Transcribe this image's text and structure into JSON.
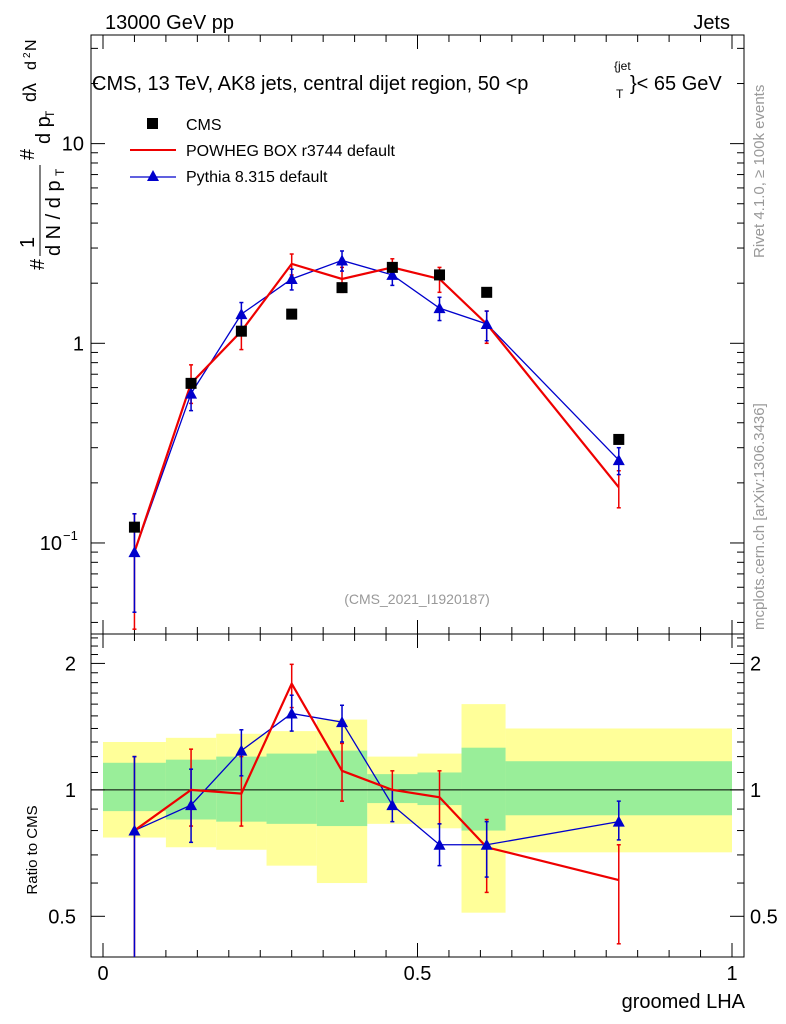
{
  "header": {
    "left": "13000 GeV pp",
    "right": "Jets"
  },
  "side_labels": {
    "rivet": "Rivet 4.1.0, ≥ 100k events",
    "mcplots": "mcplots.cern.ch [arXiv:1306.3436]"
  },
  "colors": {
    "cms": "#000000",
    "powheg": "#ee0000",
    "pythia": "#0000cc",
    "band_yellow": "#ffff99",
    "band_green": "#99ee99"
  },
  "chart_data": [
    {
      "type": "line",
      "title": "CMS, 13 TeV, AK8 jets, central dijet region, 50 <p_T^{jet}< 65 GeV",
      "title_parts": {
        "main": "CMS, 13 TeV, AK8 jets, central dijet region, 50 <p",
        "sub": "T",
        "sup": "{jet",
        "tail": "}< 65 GeV"
      },
      "ylabel_parts": [
        "#",
        "1",
        "d N / d p",
        "T",
        "#",
        "d p",
        "T",
        "dλ",
        "d",
        "2",
        "N"
      ],
      "yscale": "log",
      "xlim": [
        0,
        1
      ],
      "ylim": [
        0.035,
        35
      ],
      "major_ticks": [
        {
          "value": 0.1,
          "base": "10",
          "exp": "−1"
        },
        {
          "value": 1,
          "base": "1",
          "exp": ""
        },
        {
          "value": 10,
          "base": "10",
          "exp": ""
        }
      ],
      "watermark": "(CMS_2021_I1920187)",
      "legend": [
        "CMS",
        "POWHEG BOX r3744 default",
        "Pythia 8.315 default"
      ],
      "x": [
        0.05,
        0.14,
        0.22,
        0.3,
        0.38,
        0.46,
        0.535,
        0.61,
        0.82
      ],
      "series": [
        {
          "name": "CMS",
          "style": "marker",
          "values": [
            0.12,
            0.63,
            1.15,
            1.4,
            1.9,
            2.4,
            2.2,
            1.8,
            0.33
          ]
        },
        {
          "name": "POWHEG BOX r3744 default",
          "style": "line",
          "values": [
            0.09,
            0.63,
            1.15,
            2.5,
            2.1,
            2.4,
            2.1,
            1.25,
            0.19
          ],
          "err_lo": [
            0.053,
            0.13,
            0.22,
            0.3,
            0.3,
            0.25,
            0.3,
            0.25,
            0.04
          ],
          "err_hi": [
            0.05,
            0.15,
            0.25,
            0.3,
            0.3,
            0.25,
            0.3,
            0.2,
            0.04
          ]
        },
        {
          "name": "Pythia 8.315 default",
          "style": "line-triangle",
          "values": [
            0.09,
            0.56,
            1.4,
            2.1,
            2.6,
            2.2,
            1.5,
            1.25,
            0.26
          ],
          "err_lo": [
            0.045,
            0.1,
            0.2,
            0.25,
            0.3,
            0.25,
            0.2,
            0.22,
            0.04
          ],
          "err_hi": [
            0.05,
            0.1,
            0.2,
            0.25,
            0.3,
            0.25,
            0.2,
            0.2,
            0.04
          ]
        }
      ]
    },
    {
      "type": "line",
      "title": "",
      "xlabel": "groomed LHA",
      "ylabel": "Ratio to CMS",
      "yscale": "log",
      "xlim": [
        0,
        1
      ],
      "ylim": [
        0.4,
        2.35
      ],
      "yticks_major": [
        0.5,
        1,
        2
      ],
      "yticklabels": [
        "0.5",
        "1",
        "2"
      ],
      "xticks_major": [
        0,
        0.5,
        1
      ],
      "xticklabels": [
        "0",
        "0.5",
        "1"
      ],
      "reference_line": 1,
      "bands": {
        "edges": [
          0,
          0.1,
          0.18,
          0.26,
          0.34,
          0.42,
          0.5,
          0.57,
          0.64,
          1.0
        ],
        "yellow_lo": [
          0.77,
          0.73,
          0.72,
          0.66,
          0.6,
          0.83,
          0.81,
          0.51,
          0.71
        ],
        "yellow_hi": [
          1.3,
          1.33,
          1.36,
          1.38,
          1.47,
          1.2,
          1.22,
          1.6,
          1.4
        ],
        "green_lo": [
          0.89,
          0.85,
          0.84,
          0.83,
          0.82,
          0.93,
          0.92,
          0.8,
          0.87
        ],
        "green_hi": [
          1.16,
          1.18,
          1.2,
          1.22,
          1.24,
          1.09,
          1.1,
          1.26,
          1.17
        ]
      },
      "series": [
        {
          "name": "POWHEG BOX r3744 default",
          "values": [
            0.8,
            1.0,
            0.98,
            1.79,
            1.11,
            1.0,
            0.96,
            0.73,
            0.61
          ],
          "err_lo": [
            0.44,
            0.18,
            0.16,
            0.22,
            0.17,
            0.1,
            0.13,
            0.16,
            0.18
          ],
          "err_hi": [
            0.4,
            0.25,
            0.22,
            0.2,
            0.18,
            0.11,
            0.15,
            0.12,
            0.13
          ]
        },
        {
          "name": "Pythia 8.315 default",
          "values": [
            0.8,
            0.92,
            1.24,
            1.52,
            1.45,
            0.92,
            0.74,
            0.74,
            0.84
          ],
          "err_lo": [
            0.44,
            0.17,
            0.16,
            0.14,
            0.15,
            0.08,
            0.08,
            0.12,
            0.08
          ],
          "err_hi": [
            0.4,
            0.2,
            0.15,
            0.16,
            0.14,
            0.08,
            0.09,
            0.1,
            0.1
          ]
        }
      ]
    }
  ]
}
